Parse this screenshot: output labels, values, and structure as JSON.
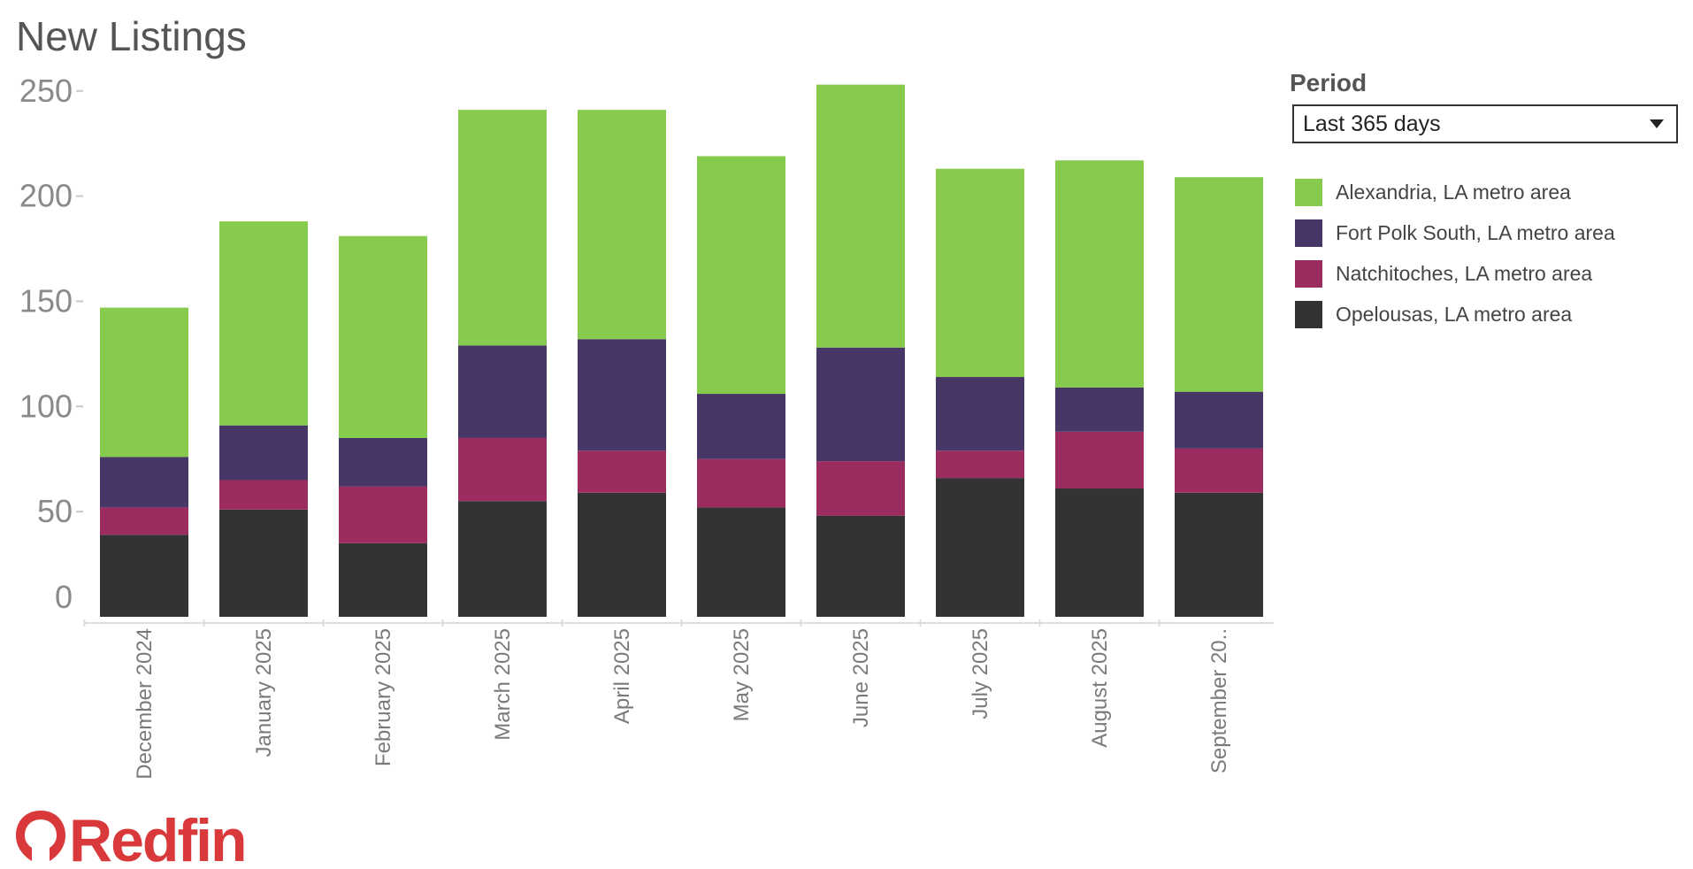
{
  "page": {
    "title": "New Listings",
    "period_label": "Period",
    "period_value": "Last 365 days",
    "brand": "Redfin"
  },
  "colors": {
    "Alexandria": "#86cb4e",
    "FortPolk": "#473766",
    "Natchitoches": "#9c2c60",
    "Opelousas": "#333333",
    "brand": "#d9393a"
  },
  "chart_data": {
    "type": "bar",
    "stacked": true,
    "title": "New Listings",
    "xlabel": "",
    "ylabel": "",
    "ylim": [
      0,
      260
    ],
    "yticks": [
      0,
      50,
      100,
      150,
      200,
      250
    ],
    "categories": [
      "December 2024",
      "January 2025",
      "February 2025",
      "March 2025",
      "April 2025",
      "May 2025",
      "June 2025",
      "July 2025",
      "August 2025",
      "September 20.."
    ],
    "legend_position": "right",
    "series": [
      {
        "name": "Opelousas, LA metro area",
        "color": "#333333",
        "values": [
          39,
          51,
          35,
          55,
          59,
          52,
          48,
          66,
          61,
          59
        ]
      },
      {
        "name": "Natchitoches, LA metro area",
        "color": "#9c2c60",
        "values": [
          13,
          14,
          27,
          30,
          20,
          23,
          26,
          13,
          27,
          21
        ]
      },
      {
        "name": "Fort Polk South, LA metro area",
        "color": "#473766",
        "values": [
          24,
          26,
          23,
          44,
          53,
          31,
          54,
          35,
          21,
          27
        ]
      },
      {
        "name": "Alexandria, LA metro area",
        "color": "#86cb4e",
        "values": [
          71,
          97,
          96,
          112,
          109,
          113,
          125,
          99,
          108,
          102
        ]
      }
    ],
    "legend_order": [
      "Alexandria, LA metro area",
      "Fort Polk South, LA metro area",
      "Natchitoches, LA metro area",
      "Opelousas, LA metro area"
    ]
  }
}
